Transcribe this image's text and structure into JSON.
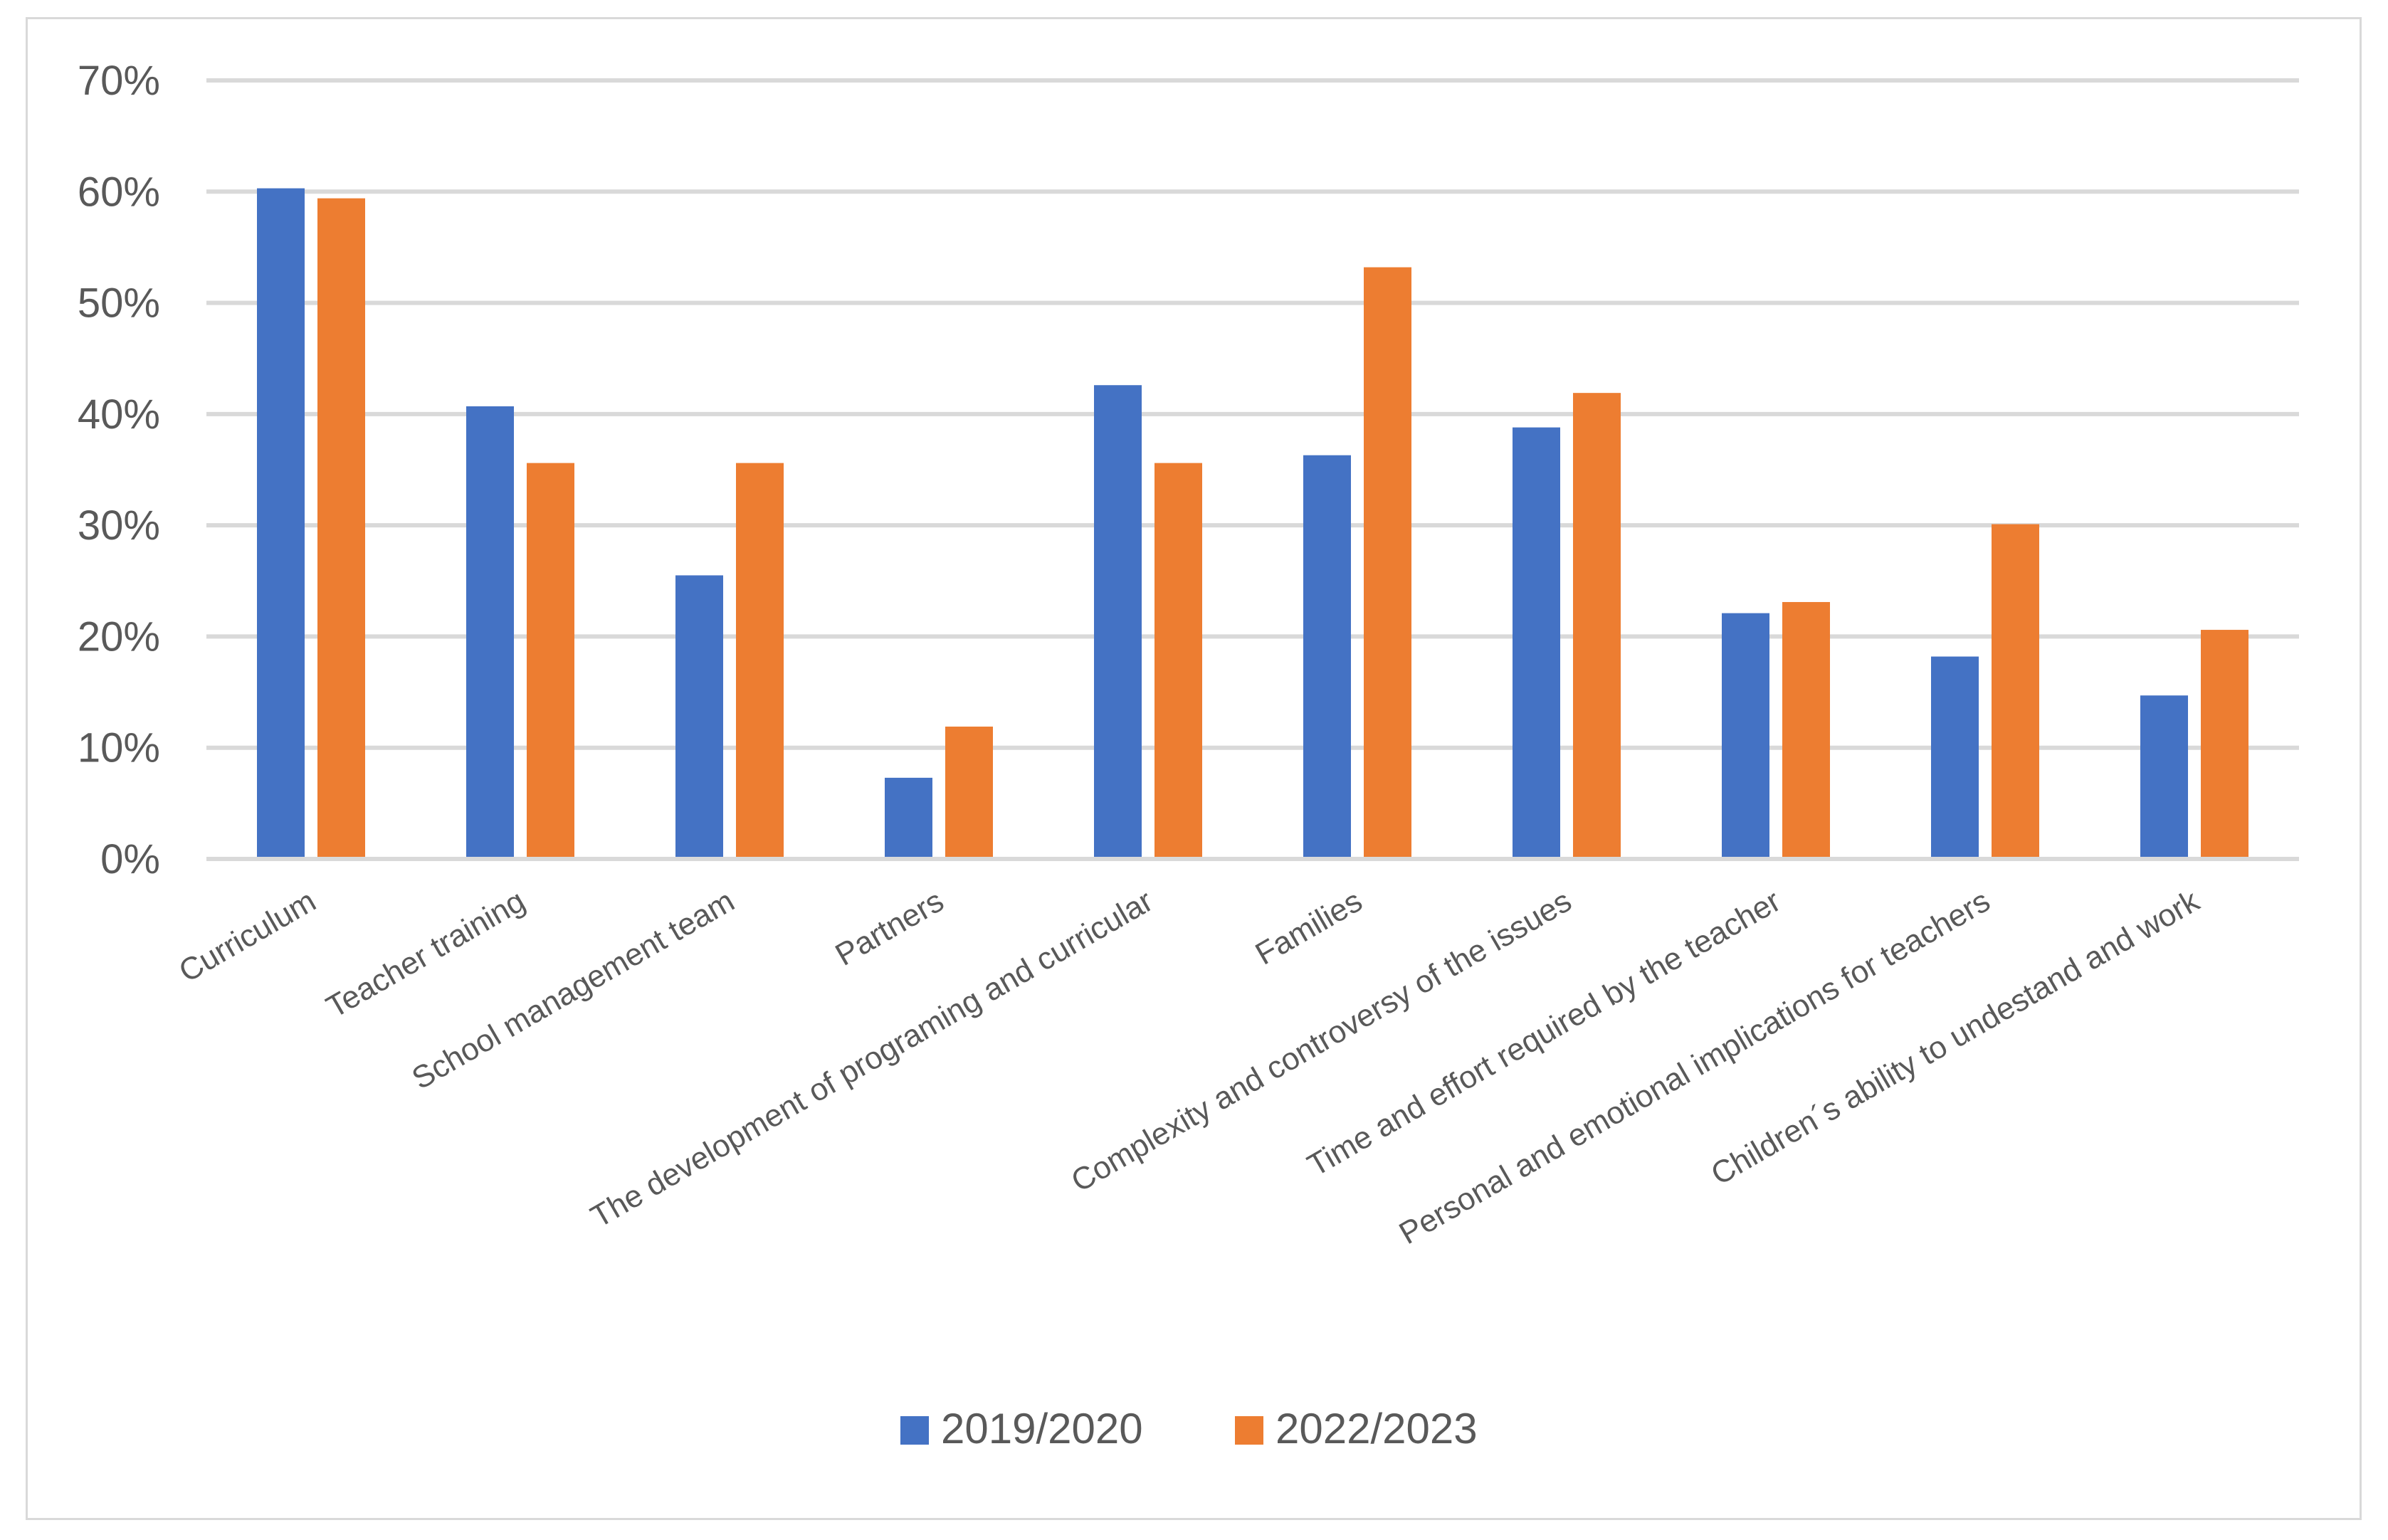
{
  "chart_data": {
    "type": "bar",
    "title": "",
    "xlabel": "",
    "ylabel": "",
    "ylim": [
      0,
      70
    ],
    "yticks": [
      0,
      10,
      20,
      30,
      40,
      50,
      60,
      70
    ],
    "ytick_labels": [
      "0%",
      "10%",
      "20%",
      "30%",
      "40%",
      "50%",
      "60%",
      "70%"
    ],
    "grid": true,
    "legend_position": "bottom",
    "categories": [
      "Curriculum",
      "Teacher training",
      "School management team",
      "Partners",
      "The development of programing and curricular",
      "Families",
      "Complexity and controversy of the issues",
      "Time and effort required by the teacher",
      "Personal and emotional implications for teachers",
      "Children´s ability to undestand and work"
    ],
    "series": [
      {
        "name": "2019/2020",
        "color": "#4472C4",
        "values": [
          60.3,
          40.7,
          25.5,
          7.3,
          42.6,
          36.3,
          38.8,
          22.1,
          18.2,
          14.7
        ]
      },
      {
        "name": "2022/2023",
        "color": "#ED7D31",
        "values": [
          59.4,
          35.6,
          35.6,
          11.9,
          35.6,
          53.2,
          41.9,
          23.1,
          30.1,
          20.6
        ]
      }
    ]
  }
}
